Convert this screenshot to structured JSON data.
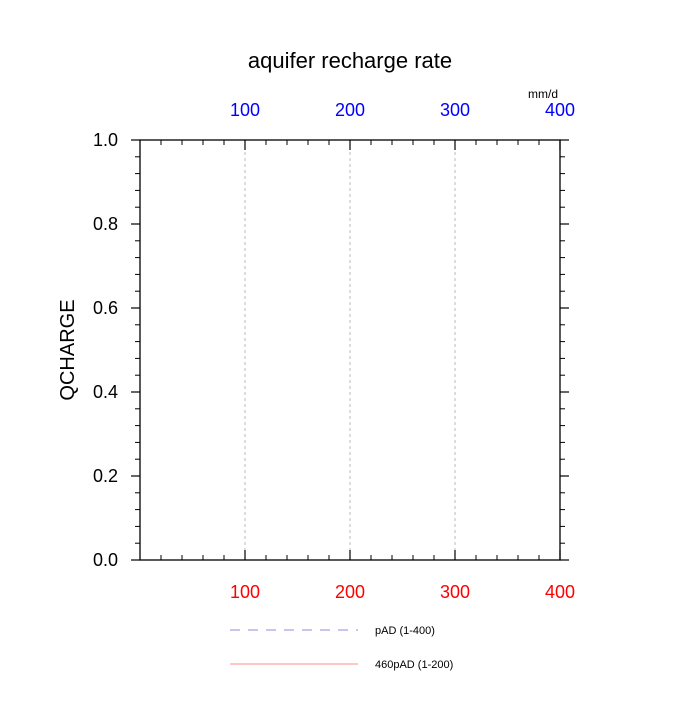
{
  "chart_data": {
    "type": "line",
    "title": "aquifer recharge rate",
    "ylabel": "QCHARGE",
    "xlabel": "",
    "top_axis_unit": "mm/d",
    "xlim": [
      0,
      400
    ],
    "ylim": [
      0,
      1
    ],
    "x_ticks": [
      100,
      200,
      300,
      400
    ],
    "x_tick_labels": [
      "100",
      "200",
      "300",
      "400"
    ],
    "x_minor_step": 20,
    "y_ticks": [
      0,
      0.2,
      0.4,
      0.6,
      0.8,
      1.0
    ],
    "y_tick_labels": [
      "0.0",
      "0.2",
      "0.4",
      "0.6",
      "0.8",
      "1.0"
    ],
    "y_minor_step": 0.04,
    "grid_x": true,
    "grid_y": false,
    "legend_position": "bottom",
    "top_tick_color": "#0000ff",
    "bottom_tick_color": "#ff0000",
    "grid_color": "#bbbbbb",
    "series": [
      {
        "name": "pAD (1-400)",
        "color": "#8c8cdc",
        "dash": "dashed",
        "x": [
          1,
          400
        ],
        "y": [
          0,
          0
        ]
      },
      {
        "name": "460pAD (1-200)",
        "color": "#ff8c8c",
        "dash": "solid",
        "x": [
          1,
          200
        ],
        "y": [
          0,
          0
        ]
      }
    ]
  }
}
